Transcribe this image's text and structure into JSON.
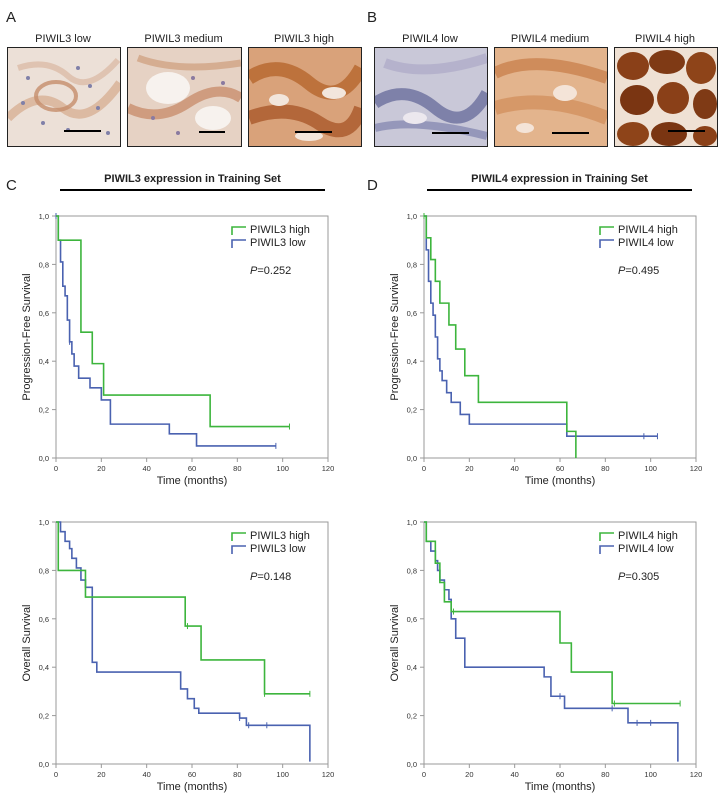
{
  "panels": {
    "A": {
      "letter": "A",
      "images": [
        {
          "label": "PIWIL3 low"
        },
        {
          "label": "PIWIL3 medium"
        },
        {
          "label": "PIWIL3 high"
        }
      ]
    },
    "B": {
      "letter": "B",
      "images": [
        {
          "label": "PIWIL4 low"
        },
        {
          "label": "PIWIL4 medium"
        },
        {
          "label": "PIWIL4 high"
        }
      ]
    },
    "C": {
      "letter": "C",
      "title": "PIWIL3 expression in Training Set"
    },
    "D": {
      "letter": "D",
      "title": "PIWIL4 expression in Training Set"
    }
  },
  "colors": {
    "high": "#3db53d",
    "low": "#4a62b0",
    "axis": "#999999"
  },
  "chart_data": [
    {
      "id": "c-pfs",
      "type": "line",
      "title": "",
      "xlabel": "Time (months)",
      "ylabel": "Progression-Free  Survival",
      "xlim": [
        0,
        120
      ],
      "ylim": [
        0,
        1
      ],
      "xticks": [
        "0",
        "20",
        "40",
        "60",
        "80",
        "100",
        "120"
      ],
      "yticks": [
        "0,0",
        "0,2",
        "0,4",
        "0,6",
        "0,8",
        "1,0"
      ],
      "legend": [
        "PIWIL3 high",
        "PIWIL3 low"
      ],
      "pvalue_label": "P",
      "pvalue": "=0.252",
      "series": [
        {
          "name": "PIWIL3 high",
          "x": [
            0,
            1,
            10,
            11,
            16,
            19,
            21,
            68,
            103
          ],
          "y": [
            1,
            0.9,
            0.9,
            0.52,
            0.39,
            0.39,
            0.26,
            0.13,
            0.13
          ],
          "censor_x": [
            103
          ]
        },
        {
          "name": "PIWIL3 low",
          "x": [
            0,
            1,
            2,
            3,
            4,
            5,
            6,
            7,
            8,
            10,
            15,
            20,
            24,
            50,
            62,
            97
          ],
          "y": [
            1,
            0.9,
            0.81,
            0.71,
            0.67,
            0.57,
            0.48,
            0.43,
            0.38,
            0.33,
            0.29,
            0.24,
            0.14,
            0.1,
            0.05,
            0.05
          ],
          "censor_x": [
            0,
            6,
            97
          ]
        }
      ]
    },
    {
      "id": "d-pfs",
      "type": "line",
      "title": "",
      "xlabel": "Time (months)",
      "ylabel": "Progression-Free  Survival",
      "xlim": [
        0,
        120
      ],
      "ylim": [
        0,
        1
      ],
      "xticks": [
        "0",
        "20",
        "40",
        "60",
        "80",
        "100",
        "120"
      ],
      "yticks": [
        "0,0",
        "0,2",
        "0,4",
        "0,6",
        "0,8",
        "1,0"
      ],
      "legend": [
        "PIWIL4 high",
        "PIWIL4 low"
      ],
      "pvalue_label": "P",
      "pvalue": "=0.495",
      "series": [
        {
          "name": "PIWIL4 high",
          "x": [
            0,
            1,
            3,
            5,
            7,
            11,
            14,
            18,
            24,
            63,
            67
          ],
          "y": [
            1,
            0.91,
            0.82,
            0.73,
            0.64,
            0.55,
            0.45,
            0.34,
            0.23,
            0.11,
            0
          ],
          "censor_x": [
            0
          ]
        },
        {
          "name": "PIWIL4 low",
          "x": [
            0,
            1,
            2,
            3,
            4,
            5,
            6,
            7,
            8,
            10,
            12,
            16,
            20,
            26,
            63,
            103
          ],
          "y": [
            1,
            0.86,
            0.73,
            0.64,
            0.59,
            0.5,
            0.41,
            0.36,
            0.32,
            0.27,
            0.23,
            0.18,
            0.14,
            0.14,
            0.09,
            0.09
          ],
          "censor_x": [
            97,
            103
          ]
        }
      ]
    },
    {
      "id": "c-os",
      "type": "line",
      "title": "",
      "xlabel": "Time (months)",
      "ylabel": "Overall  Survival",
      "xlim": [
        0,
        120
      ],
      "ylim": [
        0,
        1
      ],
      "xticks": [
        "0",
        "20",
        "40",
        "60",
        "80",
        "100",
        "120"
      ],
      "yticks": [
        "0,0",
        "0,2",
        "0,4",
        "0,6",
        "0,8",
        "1,0"
      ],
      "legend": [
        "PIWIL3 high",
        "PIWIL3 low"
      ],
      "pvalue_label": "P",
      "pvalue": "=0.148",
      "series": [
        {
          "name": "PIWIL3 high",
          "x": [
            0,
            1,
            13,
            57,
            64,
            92,
            112
          ],
          "y": [
            1,
            0.8,
            0.69,
            0.57,
            0.43,
            0.29,
            0.29
          ],
          "censor_x": [
            58,
            92,
            112
          ]
        },
        {
          "name": "PIWIL3 low",
          "x": [
            0,
            2,
            4,
            6,
            7,
            9,
            11,
            13,
            16,
            18,
            55,
            58,
            61,
            63,
            81,
            84,
            112
          ],
          "y": [
            1,
            0.96,
            0.92,
            0.89,
            0.85,
            0.81,
            0.76,
            0.73,
            0.42,
            0.38,
            0.31,
            0.27,
            0.23,
            0.21,
            0.19,
            0.16,
            0.01
          ],
          "censor_x": [
            81,
            85,
            93
          ]
        }
      ]
    },
    {
      "id": "d-os",
      "type": "line",
      "title": "",
      "xlabel": "Time (months)",
      "ylabel": "Overall  Survival",
      "xlim": [
        0,
        120
      ],
      "ylim": [
        0,
        1
      ],
      "xticks": [
        "0",
        "20",
        "40",
        "60",
        "80",
        "100",
        "120"
      ],
      "yticks": [
        "0,0",
        "0,2",
        "0,4",
        "0,6",
        "0,8",
        "1,0"
      ],
      "legend": [
        "PIWIL4 high",
        "PIWIL4 low"
      ],
      "pvalue_label": "P",
      "pvalue": "=0.305",
      "series": [
        {
          "name": "PIWIL4 high",
          "x": [
            0,
            1,
            5,
            7,
            9,
            12,
            60,
            65,
            83,
            113
          ],
          "y": [
            1,
            0.92,
            0.83,
            0.75,
            0.67,
            0.63,
            0.5,
            0.38,
            0.25,
            0.25
          ],
          "censor_x": [
            13,
            84,
            113
          ]
        },
        {
          "name": "PIWIL4 low",
          "x": [
            0,
            1,
            3,
            5,
            6,
            7,
            9,
            11,
            12,
            14,
            18,
            53,
            56,
            60,
            62,
            90,
            112
          ],
          "y": [
            1,
            0.92,
            0.88,
            0.84,
            0.8,
            0.76,
            0.72,
            0.68,
            0.6,
            0.52,
            0.4,
            0.36,
            0.28,
            0.28,
            0.23,
            0.17,
            0.01
          ],
          "censor_x": [
            60,
            83,
            94,
            100
          ]
        }
      ]
    }
  ]
}
